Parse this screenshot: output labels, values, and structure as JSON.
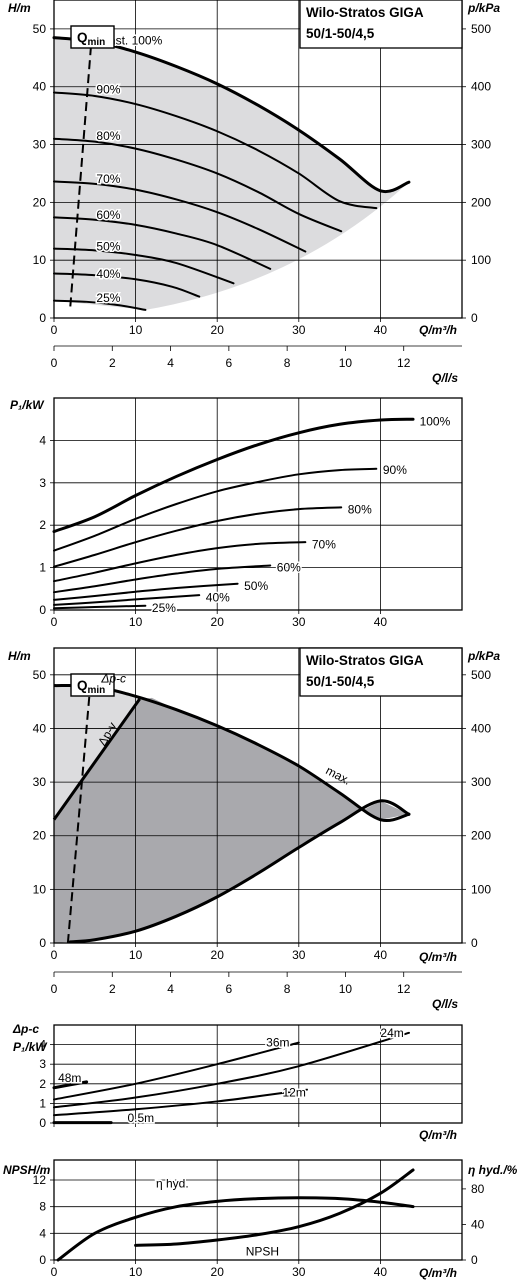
{
  "chart_data": [
    {
      "type": "line",
      "name": "h-curves-variable-speed",
      "title": [
        "Wilo-Stratos GIGA",
        "50/1-50/4,5"
      ],
      "xlabel": "Q/m³/h",
      "ylabel": "H/m",
      "y2label": "p/kPa",
      "xlim": [
        0,
        50
      ],
      "ylim": [
        0,
        55
      ],
      "y2lim": [
        0,
        550
      ],
      "xticks": [
        0,
        10,
        20,
        30,
        40
      ],
      "yticks": [
        0,
        10,
        20,
        30,
        40,
        50
      ],
      "y2ticks": [
        0,
        100,
        200,
        300,
        400,
        500
      ],
      "qmin_label": "Q",
      "qmin_sub": "min",
      "qmin_line": [
        [
          2,
          2
        ],
        [
          4.7,
          50
        ]
      ],
      "shaded_region": "grey",
      "series": [
        {
          "name": "n=const. 100%",
          "x": [
            0,
            5,
            10,
            15,
            20,
            25,
            30,
            35,
            40,
            43.5
          ],
          "y": [
            48.5,
            47.8,
            46,
            43.5,
            40.5,
            36.8,
            32.5,
            27.5,
            22,
            23.5
          ]
        },
        {
          "name": "90%",
          "x": [
            0,
            5,
            10,
            15,
            20,
            25,
            30,
            35,
            39.5
          ],
          "y": [
            39,
            38.4,
            37,
            34.9,
            32.3,
            29,
            25,
            20.2,
            19
          ]
        },
        {
          "name": "80%",
          "x": [
            0,
            5,
            10,
            15,
            20,
            25,
            30,
            35.2
          ],
          "y": [
            31,
            30.5,
            29.3,
            27.4,
            25,
            21.8,
            18,
            15
          ]
        },
        {
          "name": "70%",
          "x": [
            0,
            5,
            10,
            15,
            20,
            25,
            30.8
          ],
          "y": [
            23.6,
            23.2,
            22.2,
            20.5,
            18.3,
            15.4,
            11.5
          ]
        },
        {
          "name": "60%",
          "x": [
            0,
            5,
            10,
            15,
            20,
            26.5
          ],
          "y": [
            17.4,
            17,
            16.1,
            14.6,
            12.6,
            8.5
          ]
        },
        {
          "name": "50%",
          "x": [
            0,
            5,
            10,
            15,
            22
          ],
          "y": [
            12,
            11.7,
            10.9,
            9.5,
            6
          ]
        },
        {
          "name": "40%",
          "x": [
            0,
            5,
            10,
            14.5,
            17.8
          ],
          "y": [
            7.7,
            7.4,
            6.7,
            5.4,
            3.7
          ]
        },
        {
          "name": "25%",
          "x": [
            0,
            4,
            8,
            11.2
          ],
          "y": [
            3,
            2.8,
            2.2,
            1.4
          ]
        }
      ],
      "curve_labels": [
        {
          "text": "n=const. 100%",
          "x": 3.5,
          "y": 48
        },
        {
          "text": "90%",
          "x": 5.2,
          "y": 39.5
        },
        {
          "text": "80%",
          "x": 5.2,
          "y": 31.5
        },
        {
          "text": "70%",
          "x": 5.2,
          "y": 24
        },
        {
          "text": "60%",
          "x": 5.2,
          "y": 17.8
        },
        {
          "text": "50%",
          "x": 5.2,
          "y": 12.4
        },
        {
          "text": "40%",
          "x": 5.2,
          "y": 7.6
        },
        {
          "text": "25%",
          "x": 5.2,
          "y": 3.5
        }
      ]
    },
    {
      "type": "axis",
      "name": "q-ls-axis-1",
      "xlabel": "Q/l/s",
      "xlim": [
        0,
        14
      ],
      "xticks": [
        0,
        2,
        4,
        6,
        8,
        10,
        12
      ]
    },
    {
      "type": "line",
      "name": "p1-curves-variable-speed",
      "xlabel": "",
      "ylabel": "P₁/kW",
      "xlim": [
        0,
        50
      ],
      "ylim": [
        0,
        5
      ],
      "xticks": [
        0,
        10,
        20,
        30,
        40
      ],
      "yticks": [
        0,
        1,
        2,
        3,
        4
      ],
      "series": [
        {
          "name": "100%",
          "x": [
            0,
            5,
            10,
            15,
            20,
            25,
            30,
            35,
            40,
            44
          ],
          "y": [
            1.85,
            2.2,
            2.7,
            3.15,
            3.55,
            3.9,
            4.18,
            4.38,
            4.48,
            4.5
          ]
        },
        {
          "name": "90%",
          "x": [
            0,
            5,
            10,
            15,
            20,
            25,
            30,
            35,
            39.5
          ],
          "y": [
            1.4,
            1.75,
            2.15,
            2.5,
            2.8,
            3.02,
            3.2,
            3.3,
            3.33
          ]
        },
        {
          "name": "80%",
          "x": [
            0,
            5,
            10,
            15,
            20,
            25,
            30,
            35.2
          ],
          "y": [
            1.02,
            1.3,
            1.6,
            1.87,
            2.1,
            2.27,
            2.38,
            2.42
          ]
        },
        {
          "name": "70%",
          "x": [
            0,
            5,
            10,
            15,
            20,
            25,
            30.8
          ],
          "y": [
            0.68,
            0.88,
            1.1,
            1.3,
            1.46,
            1.56,
            1.6
          ]
        },
        {
          "name": "60%",
          "x": [
            0,
            5,
            10,
            15,
            20,
            26.5
          ],
          "y": [
            0.42,
            0.56,
            0.72,
            0.86,
            0.97,
            1.05
          ]
        },
        {
          "name": "50%",
          "x": [
            0,
            5,
            10,
            15,
            22.5
          ],
          "y": [
            0.24,
            0.33,
            0.43,
            0.52,
            0.62
          ]
        },
        {
          "name": "40%",
          "x": [
            0,
            5,
            10,
            17.8
          ],
          "y": [
            0.12,
            0.18,
            0.25,
            0.35
          ]
        },
        {
          "name": "25%",
          "x": [
            0,
            5,
            11.2
          ],
          "y": [
            0.04,
            0.07,
            0.1
          ]
        }
      ],
      "curve_labels": [
        {
          "text": "100%",
          "x": 44.8,
          "y": 4.45
        },
        {
          "text": "90%",
          "x": 40.3,
          "y": 3.3
        },
        {
          "text": "80%",
          "x": 36,
          "y": 2.37
        },
        {
          "text": "70%",
          "x": 31.6,
          "y": 1.55
        },
        {
          "text": "60%",
          "x": 27.3,
          "y": 1.0
        },
        {
          "text": "50%",
          "x": 23.3,
          "y": 0.57
        },
        {
          "text": "40%",
          "x": 18.6,
          "y": 0.3
        },
        {
          "text": "25%",
          "x": 12,
          "y": 0.05
        }
      ]
    },
    {
      "type": "line",
      "name": "h-curves-dp-control",
      "title": [
        "Wilo-Stratos GIGA",
        "50/1-50/4,5"
      ],
      "xlabel": "Q/m³/h",
      "ylabel": "H/m",
      "y2label": "p/kPa",
      "xlim": [
        0,
        50
      ],
      "ylim": [
        0,
        55
      ],
      "y2lim": [
        0,
        550
      ],
      "xticks": [
        0,
        10,
        20,
        30,
        40
      ],
      "yticks": [
        0,
        10,
        20,
        30,
        40,
        50
      ],
      "y2ticks": [
        0,
        100,
        200,
        300,
        400,
        500
      ],
      "qmin_label": "Q",
      "qmin_sub": "min",
      "qmin_line": [
        [
          1.7,
          0
        ],
        [
          4.5,
          49
        ]
      ],
      "labels": {
        "dpc": "Δp-c",
        "dpv": "Δp-v",
        "max": "max."
      },
      "series": [
        {
          "name": "max",
          "x": [
            0,
            5,
            10,
            15,
            20,
            25,
            30,
            35,
            40,
            43.5
          ],
          "y": [
            48,
            47.8,
            46,
            43.5,
            40.5,
            37,
            33,
            28,
            23,
            24
          ]
        },
        {
          "name": "min",
          "x": [
            2,
            5,
            10,
            15,
            20,
            25,
            30,
            35,
            40,
            43.5
          ],
          "y": [
            0.2,
            0.6,
            2.2,
            5,
            8.6,
            13,
            17.8,
            22.4,
            26.5,
            24
          ]
        },
        {
          "name": "dp-v",
          "x": [
            0,
            10.5
          ],
          "y": [
            23,
            45.5
          ]
        }
      ]
    },
    {
      "type": "axis",
      "name": "q-ls-axis-2",
      "xlabel": "Q/l/s",
      "xlim": [
        0,
        14
      ],
      "xticks": [
        0,
        2,
        4,
        6,
        8,
        10,
        12
      ]
    },
    {
      "type": "line",
      "name": "p1-curves-dp-control",
      "xlabel": "Q/m³/h",
      "ylabel": "P₁/kW",
      "ylabel_top": "Δp-c",
      "xlim": [
        0,
        50
      ],
      "ylim": [
        0,
        5
      ],
      "xticks": [
        0,
        10,
        20,
        30,
        40
      ],
      "yticks": [
        0,
        1,
        2,
        3,
        4
      ],
      "series": [
        {
          "name": "48m",
          "x": [
            0,
            4
          ],
          "y": [
            1.8,
            2.1
          ]
        },
        {
          "name": "36m",
          "x": [
            0,
            10,
            20,
            30
          ],
          "y": [
            1.2,
            2.0,
            3.0,
            4.1
          ]
        },
        {
          "name": "24m",
          "x": [
            0,
            10,
            20,
            30,
            43.5
          ],
          "y": [
            0.8,
            1.3,
            2.0,
            2.9,
            4.6
          ]
        },
        {
          "name": "12m",
          "x": [
            0,
            10,
            20,
            31
          ],
          "y": [
            0.4,
            0.7,
            1.1,
            1.7
          ]
        },
        {
          "name": "0.5m",
          "x": [
            0,
            7
          ],
          "y": [
            0.02,
            0.02
          ]
        }
      ],
      "curve_labels": [
        {
          "text": "48m",
          "x": 0.5,
          "y": 2.3
        },
        {
          "text": "36m",
          "x": 26,
          "y": 4.1
        },
        {
          "text": "24m",
          "x": 40,
          "y": 4.6
        },
        {
          "text": "12m",
          "x": 28,
          "y": 1.55
        },
        {
          "text": "0.5m",
          "x": 9,
          "y": 0.25
        }
      ]
    },
    {
      "type": "line",
      "name": "npsh-efficiency",
      "xlabel": "Q/m³/h",
      "ylabel": "NPSH/m",
      "y2label": "η hyd./%",
      "xlim": [
        0,
        50
      ],
      "ylim": [
        0,
        15
      ],
      "y2lim": [
        0,
        112.5
      ],
      "xticks": [
        0,
        10,
        20,
        30,
        40
      ],
      "yticks": [
        0,
        4,
        8,
        12
      ],
      "y2ticks": [
        0,
        40,
        80
      ],
      "series": [
        {
          "name": "η hyd.",
          "axis": "y2",
          "x": [
            0.5,
            5,
            10,
            15,
            20,
            25,
            30,
            35,
            40,
            44
          ],
          "y": [
            0,
            30,
            48,
            60,
            66,
            69,
            70,
            69,
            65,
            60
          ]
        },
        {
          "name": "NPSH",
          "axis": "y",
          "x": [
            10,
            15,
            20,
            25,
            30,
            35,
            40,
            44
          ],
          "y": [
            2.2,
            2.4,
            3.0,
            3.8,
            5.0,
            7.0,
            10.0,
            13.5
          ]
        }
      ],
      "curve_labels": [
        {
          "text": "η hyd.",
          "x": 12.5,
          "y": 11.5
        },
        {
          "text": "NPSH",
          "x": 23.5,
          "y": 1.3
        }
      ]
    }
  ]
}
